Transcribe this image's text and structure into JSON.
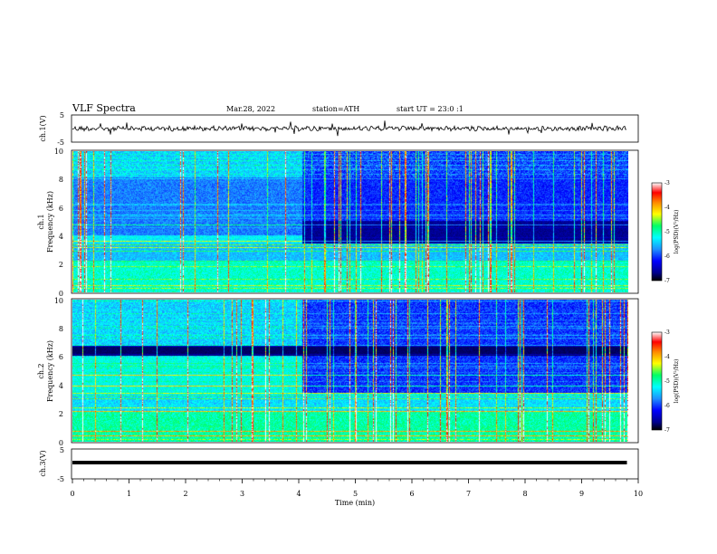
{
  "header": {
    "title": "VLF Spectra",
    "date": "Mar.28, 2022",
    "station": "station=ATH",
    "start": "start UT = 23:0 :1"
  },
  "colors": {
    "background": "#ffffff",
    "colormap": [
      "#000000",
      "#00008c",
      "#0000ff",
      "#1e90ff",
      "#00ffff",
      "#00ff66",
      "#ffff00",
      "#ff8800",
      "#ff0000",
      "#ffffff"
    ]
  },
  "chart_data": [
    {
      "type": "line",
      "ylabel": "ch.1(V)",
      "ylim": [
        -5,
        5
      ],
      "ytick_labels": [
        "5",
        "-5"
      ],
      "x_range_min": [
        0,
        10
      ],
      "series": [
        {
          "level": 0,
          "description": "noisy waveform around 0 V with occasional spikes"
        }
      ]
    },
    {
      "type": "heatmap",
      "ylabel": "ch.1\nFrequency (kHz)",
      "ylim_khz": [
        0,
        10
      ],
      "ytick_labels": [
        "0",
        "2",
        "4",
        "6",
        "8",
        "10"
      ],
      "colorbar": {
        "label": "log(PSD)(V²/Hz)",
        "range": [
          -7,
          -3
        ],
        "tick_labels": [
          "-3",
          "-4",
          "-5",
          "-6",
          "-7"
        ]
      }
    },
    {
      "type": "heatmap",
      "ylabel": "ch.2\nFrequency (kHz)",
      "ylim_khz": [
        0,
        10
      ],
      "ytick_labels": [
        "0",
        "2",
        "4",
        "6",
        "8",
        "10"
      ],
      "colorbar": {
        "label": "log(PSD)(V²/Hz)",
        "range": [
          -7,
          -3
        ],
        "tick_labels": [
          "-3",
          "-4",
          "-5",
          "-6",
          "-7"
        ]
      }
    },
    {
      "type": "line",
      "ylabel": "ch.3(V)",
      "ylim": [
        -5,
        5
      ],
      "ytick_labels": [
        "5",
        "-5"
      ],
      "series": [
        {
          "level": 0,
          "description": "flat thick line at 0 V"
        }
      ]
    }
  ],
  "xaxis": {
    "label": "Time (min)",
    "range": [
      0,
      10
    ],
    "tick_labels": [
      "0",
      "1",
      "2",
      "3",
      "4",
      "5",
      "6",
      "7",
      "8",
      "9",
      "10"
    ],
    "data_end_min": 9.8,
    "transition_min": 4.05
  }
}
